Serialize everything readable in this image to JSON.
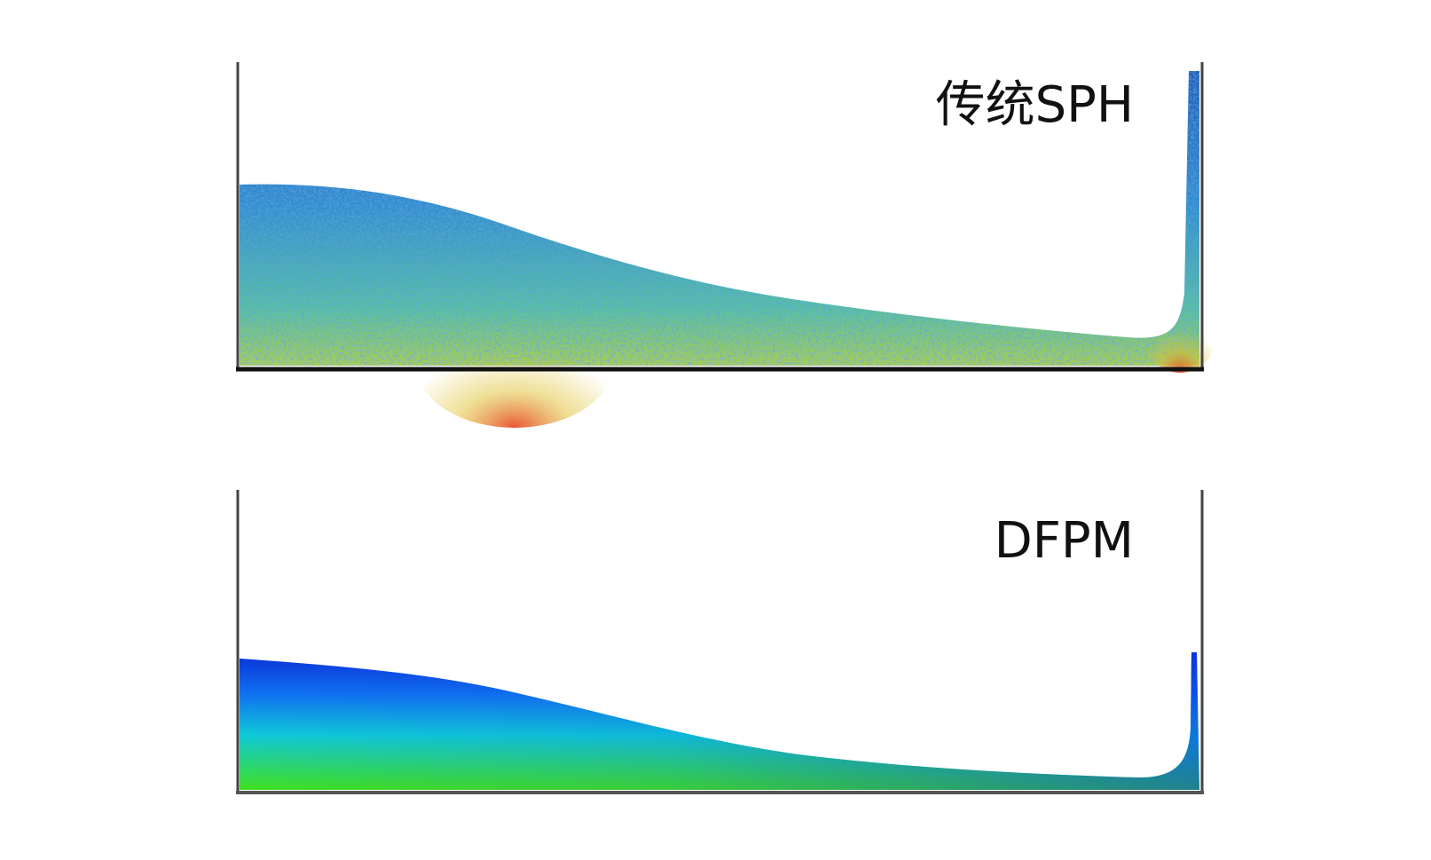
{
  "panels": [
    {
      "label": "传统SPH"
    },
    {
      "label": "DFPM"
    }
  ]
}
